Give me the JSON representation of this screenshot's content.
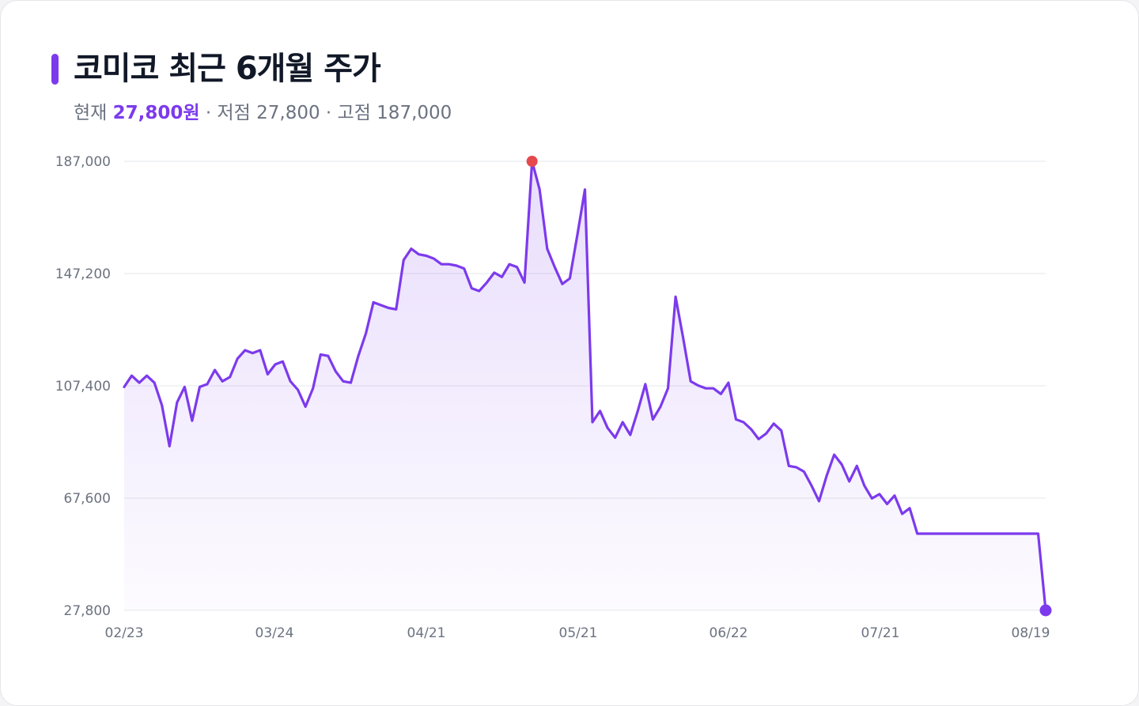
{
  "header": {
    "title": "코미코 최근 6개월 주가",
    "current_label": "현재",
    "current_value": "27,800원",
    "sep1": " · ",
    "low_text": "저점 27,800",
    "sep2": " · ",
    "high_text": "고점 187,000"
  },
  "colors": {
    "accent": "#7c3aed",
    "line": "#7c3aed",
    "high_marker": "#e5484d",
    "grid": "#e5e7eb"
  },
  "chart_data": {
    "type": "area",
    "x_ticks": [
      "02/23",
      "03/24",
      "04/21",
      "05/21",
      "06/22",
      "07/21",
      "08/19"
    ],
    "y_ticks": [
      "187,000",
      "147,200",
      "107,400",
      "67,600",
      "27,800"
    ],
    "y_tick_values": [
      187000,
      147200,
      107400,
      67600,
      27800
    ],
    "ylim": [
      27800,
      187000
    ],
    "grid": true,
    "high": 187000,
    "low": 27800,
    "values": [
      107000,
      111000,
      108500,
      111000,
      108500,
      100500,
      86000,
      101500,
      107000,
      95000,
      107000,
      108000,
      113000,
      109000,
      110500,
      117000,
      120000,
      119000,
      120000,
      111500,
      115000,
      116000,
      109000,
      106000,
      100000,
      106500,
      118500,
      118000,
      112500,
      109000,
      108500,
      118000,
      126000,
      137000,
      136000,
      135000,
      134500,
      152000,
      156000,
      154000,
      153500,
      152500,
      150500,
      150500,
      150000,
      149000,
      142000,
      141000,
      144000,
      147500,
      146000,
      150500,
      149500,
      144000,
      187000,
      177000,
      156000,
      149500,
      143500,
      145500,
      161000,
      177000,
      94500,
      98500,
      92500,
      89000,
      94500,
      90000,
      98500,
      108000,
      95500,
      100000,
      106500,
      139000,
      124500,
      109000,
      107500,
      106500,
      106500,
      104500,
      108500,
      95500,
      94500,
      92000,
      88500,
      90500,
      94000,
      91500,
      79000,
      78500,
      77000,
      72000,
      66500,
      75500,
      83000,
      79500,
      73500,
      79000,
      72000,
      67500,
      69000,
      65500,
      68500,
      62000,
      64000,
      55000,
      55000,
      55000,
      55000,
      55000,
      55000,
      55000,
      55000,
      55000,
      55000,
      55000,
      55000,
      55000,
      55000,
      55000,
      55000,
      55000,
      27800
    ]
  }
}
